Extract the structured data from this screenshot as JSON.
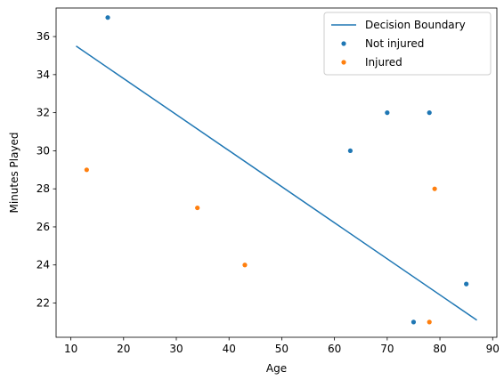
{
  "chart_data": {
    "type": "scatter",
    "title": "",
    "xlabel": "Age",
    "ylabel": "Minutes Played",
    "xlim": [
      7.2,
      90.8
    ],
    "ylim": [
      20.2,
      37.5
    ],
    "xticks": [
      10,
      20,
      30,
      40,
      50,
      60,
      70,
      80,
      90
    ],
    "yticks": [
      22,
      24,
      26,
      28,
      30,
      32,
      34,
      36
    ],
    "grid": false,
    "legend_position": "top-right",
    "series": [
      {
        "name": "Decision Boundary",
        "kind": "line",
        "color": "#1f77b4",
        "points": [
          [
            11,
            35.5
          ],
          [
            87,
            21.1
          ]
        ]
      },
      {
        "name": "Not injured",
        "kind": "scatter",
        "color": "#1f77b4",
        "points": [
          [
            17,
            37
          ],
          [
            63,
            30
          ],
          [
            70,
            32
          ],
          [
            78,
            32
          ],
          [
            75,
            21
          ],
          [
            85,
            23
          ]
        ]
      },
      {
        "name": "Injured",
        "kind": "scatter",
        "color": "#ff7f0e",
        "points": [
          [
            13,
            29
          ],
          [
            34,
            27
          ],
          [
            43,
            24
          ],
          [
            78,
            21
          ],
          [
            79,
            28
          ]
        ]
      }
    ]
  }
}
